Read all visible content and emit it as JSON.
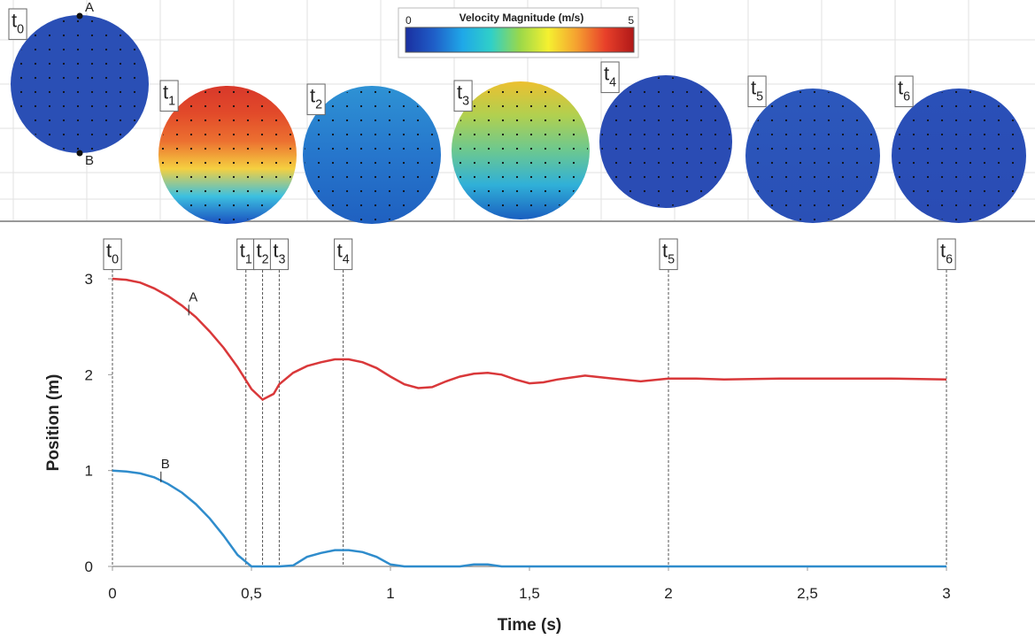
{
  "snapshots": {
    "colorbar": {
      "label": "Velocity Magnitude (m/s)",
      "min": 0,
      "max": 5,
      "colors": [
        "#1a2fa0",
        "#1f5ec8",
        "#1fa8e8",
        "#30d0c8",
        "#9ad84a",
        "#f5f030",
        "#f5a030",
        "#e8402a",
        "#b01818"
      ]
    },
    "points": [
      "A",
      "B"
    ],
    "frames": [
      {
        "label": [
          "t",
          "0"
        ],
        "colors": [
          "#2a4fb5",
          "#2a4fb5"
        ]
      },
      {
        "label": [
          "t",
          "1"
        ],
        "colors": [
          "#d8382a",
          "#e24a2a",
          "#ec7030",
          "#f5d040",
          "#3cc0e0",
          "#1a4fc0"
        ]
      },
      {
        "label": [
          "t",
          "2"
        ],
        "colors": [
          "#2e92d4",
          "#2676cc",
          "#1f60c0"
        ]
      },
      {
        "label": [
          "t",
          "3"
        ],
        "colors": [
          "#ecc030",
          "#b0d050",
          "#6cc890",
          "#30b0d8",
          "#1a5fc0"
        ]
      },
      {
        "label": [
          "t",
          "4"
        ],
        "colors": [
          "#2a4cb4",
          "#2a4cb4"
        ]
      },
      {
        "label": [
          "t",
          "5"
        ],
        "colors": [
          "#2c58bc",
          "#2a50b6"
        ]
      },
      {
        "label": [
          "t",
          "6"
        ],
        "colors": [
          "#2a50b8",
          "#2a4cb4"
        ]
      }
    ]
  },
  "chart_data": {
    "type": "line",
    "xlabel": "Time (s)",
    "ylabel": "Position (m)",
    "x": [
      0,
      0.05,
      0.1,
      0.15,
      0.2,
      0.25,
      0.3,
      0.35,
      0.4,
      0.45,
      0.5,
      0.54,
      0.58,
      0.6,
      0.65,
      0.7,
      0.75,
      0.8,
      0.85,
      0.9,
      0.95,
      1.0,
      1.05,
      1.1,
      1.15,
      1.2,
      1.25,
      1.3,
      1.35,
      1.4,
      1.45,
      1.5,
      1.55,
      1.6,
      1.7,
      1.8,
      1.9,
      2.0,
      2.1,
      2.2,
      2.4,
      2.6,
      2.8,
      3.0
    ],
    "series": [
      {
        "name": "A",
        "color": "#d9383a",
        "values": [
          3.0,
          2.99,
          2.96,
          2.9,
          2.82,
          2.72,
          2.6,
          2.45,
          2.28,
          2.08,
          1.85,
          1.74,
          1.8,
          1.9,
          2.02,
          2.09,
          2.13,
          2.16,
          2.16,
          2.13,
          2.07,
          1.98,
          1.9,
          1.86,
          1.87,
          1.93,
          1.98,
          2.01,
          2.02,
          2.0,
          1.95,
          1.91,
          1.92,
          1.95,
          1.99,
          1.96,
          1.93,
          1.96,
          1.96,
          1.95,
          1.96,
          1.96,
          1.96,
          1.95
        ]
      },
      {
        "name": "B",
        "color": "#2f8ccc",
        "values": [
          1.0,
          0.99,
          0.97,
          0.93,
          0.86,
          0.77,
          0.65,
          0.5,
          0.32,
          0.12,
          0,
          0,
          0,
          0,
          0.01,
          0.1,
          0.14,
          0.17,
          0.17,
          0.15,
          0.1,
          0.02,
          0,
          0,
          0,
          0,
          0,
          0.02,
          0.02,
          0,
          0,
          0,
          0,
          0,
          0,
          0,
          0,
          0,
          0,
          0,
          0,
          0,
          0,
          0
        ]
      }
    ],
    "markers": [
      {
        "t": 0,
        "label": [
          "t",
          "0"
        ]
      },
      {
        "t": 0.48,
        "label": [
          "t",
          "1"
        ]
      },
      {
        "t": 0.54,
        "label": [
          "t",
          "2"
        ]
      },
      {
        "t": 0.6,
        "label": [
          "t",
          "3"
        ]
      },
      {
        "t": 0.83,
        "label": [
          "t",
          "4"
        ]
      },
      {
        "t": 2,
        "label": [
          "t",
          "5"
        ]
      },
      {
        "t": 3,
        "label": [
          "t",
          "6"
        ]
      }
    ],
    "xlim": [
      0,
      3
    ],
    "ylim": [
      0,
      3
    ],
    "xticks": [
      0,
      {
        "value": 0.5,
        "label": "0,5"
      },
      1,
      {
        "value": 1.5,
        "label": "1,5"
      },
      2,
      {
        "value": 2.5,
        "label": "2,5"
      },
      3
    ],
    "yticks": [
      0,
      1,
      2,
      3
    ]
  }
}
